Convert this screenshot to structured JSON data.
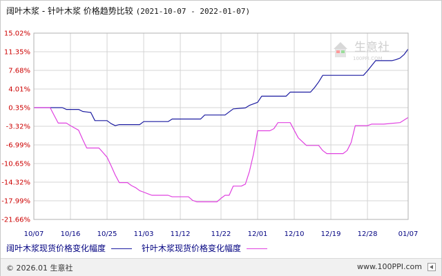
{
  "title": {
    "main": "阔叶木浆 - 针叶木浆 价格趋势比较",
    "range": "(2021-10-07 - 2022-01-07)"
  },
  "watermark": {
    "text": "生意社",
    "sub": "100PPI.COM"
  },
  "colors": {
    "series1": "#1a1aa0",
    "series2": "#e040e0",
    "grid": "#d4d4d4",
    "ytick": "#cc0000",
    "xtick": "#000080"
  },
  "footer": {
    "copyright": "© 2026.01 生意社",
    "url": "www.100PPI.com"
  },
  "chart_data": {
    "type": "line",
    "title": "阔叶木浆 - 针叶木浆 价格趋势比较",
    "subtitle": "(2021-10-07 - 2022-01-07)",
    "x_range": [
      "2021-10-07",
      "2022-01-07"
    ],
    "ylim": [
      -21.66,
      15.02
    ],
    "y_ticks": [
      "15.02%",
      "11.35%",
      "7.68%",
      "4.01%",
      "0.35%",
      "-3.32%",
      "-6.99%",
      "-10.65%",
      "-14.32%",
      "-17.99%",
      "-21.66%"
    ],
    "x_ticks": [
      "10/07",
      "10/16",
      "10/25",
      "11/03",
      "11/12",
      "11/22",
      "12/01",
      "12/10",
      "12/19",
      "12/28",
      "01/07"
    ],
    "x_tick_dates": [
      "2021-10-07",
      "2021-10-16",
      "2021-10-25",
      "2021-11-03",
      "2021-11-12",
      "2021-11-22",
      "2021-12-01",
      "2021-12-10",
      "2021-12-19",
      "2021-12-28",
      "2022-01-07"
    ],
    "grid": true,
    "legend_position": "bottom-left",
    "series": [
      {
        "name": "阔叶木浆现货价格变化幅度",
        "color": "#1a1aa0",
        "points": [
          [
            "2021-10-07",
            0.35
          ],
          [
            "2021-10-14",
            0.35
          ],
          [
            "2021-10-15",
            0.0
          ],
          [
            "2021-10-18",
            0.0
          ],
          [
            "2021-10-19",
            -0.4
          ],
          [
            "2021-10-21",
            -0.6
          ],
          [
            "2021-10-22",
            -2.2
          ],
          [
            "2021-10-25",
            -2.2
          ],
          [
            "2021-10-26",
            -2.8
          ],
          [
            "2021-10-27",
            -3.2
          ],
          [
            "2021-10-28",
            -3.0
          ],
          [
            "2021-11-02",
            -3.0
          ],
          [
            "2021-11-03",
            -2.4
          ],
          [
            "2021-11-09",
            -2.4
          ],
          [
            "2021-11-10",
            -1.9
          ],
          [
            "2021-11-17",
            -1.9
          ],
          [
            "2021-11-18",
            -1.1
          ],
          [
            "2021-11-23",
            -1.1
          ],
          [
            "2021-11-24",
            -0.5
          ],
          [
            "2021-11-25",
            0.1
          ],
          [
            "2021-11-28",
            0.3
          ],
          [
            "2021-11-29",
            0.8
          ],
          [
            "2021-12-01",
            1.4
          ],
          [
            "2021-12-02",
            2.6
          ],
          [
            "2021-12-08",
            2.6
          ],
          [
            "2021-12-09",
            3.4
          ],
          [
            "2021-12-14",
            3.4
          ],
          [
            "2021-12-15",
            4.3
          ],
          [
            "2021-12-16",
            5.4
          ],
          [
            "2021-12-17",
            6.7
          ],
          [
            "2021-12-27",
            6.7
          ],
          [
            "2021-12-28",
            7.6
          ],
          [
            "2021-12-29",
            8.6
          ],
          [
            "2021-12-30",
            9.6
          ],
          [
            "2022-01-03",
            9.6
          ],
          [
            "2022-01-04",
            9.8
          ],
          [
            "2022-01-05",
            10.1
          ],
          [
            "2022-01-06",
            10.8
          ],
          [
            "2022-01-07",
            11.9
          ]
        ]
      },
      {
        "name": "针叶木浆现货价格变化幅度",
        "color": "#e040e0",
        "points": [
          [
            "2021-10-07",
            0.35
          ],
          [
            "2021-10-11",
            0.35
          ],
          [
            "2021-10-12",
            -1.2
          ],
          [
            "2021-10-13",
            -2.7
          ],
          [
            "2021-10-15",
            -2.7
          ],
          [
            "2021-10-16",
            -3.2
          ],
          [
            "2021-10-18",
            -4.1
          ],
          [
            "2021-10-19",
            -5.9
          ],
          [
            "2021-10-20",
            -7.6
          ],
          [
            "2021-10-23",
            -7.6
          ],
          [
            "2021-10-24",
            -8.5
          ],
          [
            "2021-10-25",
            -9.4
          ],
          [
            "2021-10-26",
            -11.1
          ],
          [
            "2021-10-27",
            -12.9
          ],
          [
            "2021-10-28",
            -14.4
          ],
          [
            "2021-10-30",
            -14.4
          ],
          [
            "2021-10-31",
            -15.0
          ],
          [
            "2021-11-01",
            -15.4
          ],
          [
            "2021-11-02",
            -16.0
          ],
          [
            "2021-11-03",
            -16.3
          ],
          [
            "2021-11-04",
            -16.6
          ],
          [
            "2021-11-05",
            -16.9
          ],
          [
            "2021-11-09",
            -16.9
          ],
          [
            "2021-11-10",
            -17.2
          ],
          [
            "2021-11-14",
            -17.2
          ],
          [
            "2021-11-15",
            -17.9
          ],
          [
            "2021-11-16",
            -18.2
          ],
          [
            "2021-11-21",
            -18.2
          ],
          [
            "2021-11-22",
            -17.5
          ],
          [
            "2021-11-23",
            -16.9
          ],
          [
            "2021-11-24",
            -16.9
          ],
          [
            "2021-11-25",
            -15.1
          ],
          [
            "2021-11-27",
            -15.1
          ],
          [
            "2021-11-28",
            -14.7
          ],
          [
            "2021-11-29",
            -12.2
          ],
          [
            "2021-11-30",
            -8.8
          ],
          [
            "2021-12-01",
            -4.2
          ],
          [
            "2021-12-04",
            -4.2
          ],
          [
            "2021-12-05",
            -3.8
          ],
          [
            "2021-12-06",
            -2.6
          ],
          [
            "2021-12-09",
            -2.6
          ],
          [
            "2021-12-10",
            -4.1
          ],
          [
            "2021-12-11",
            -5.6
          ],
          [
            "2021-12-13",
            -7.1
          ],
          [
            "2021-12-16",
            -7.1
          ],
          [
            "2021-12-17",
            -8.1
          ],
          [
            "2021-12-18",
            -8.7
          ],
          [
            "2021-12-22",
            -8.7
          ],
          [
            "2021-12-23",
            -8.1
          ],
          [
            "2021-12-24",
            -6.5
          ],
          [
            "2021-12-25",
            -3.2
          ],
          [
            "2021-12-28",
            -3.2
          ],
          [
            "2021-12-29",
            -2.9
          ],
          [
            "2022-01-01",
            -2.9
          ],
          [
            "2022-01-05",
            -2.6
          ],
          [
            "2022-01-07",
            -1.6
          ]
        ]
      }
    ]
  }
}
